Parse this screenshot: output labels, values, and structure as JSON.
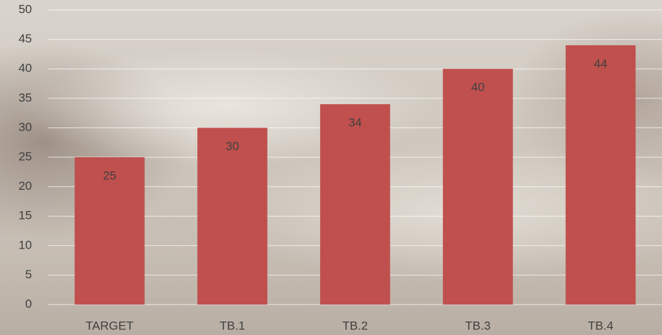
{
  "chart_data": {
    "type": "bar",
    "categories": [
      "TARGET",
      "TB.1",
      "TB.2",
      "TB.3",
      "TB.4"
    ],
    "values": [
      25,
      30,
      34,
      40,
      44
    ],
    "color": "#c0504d",
    "ylim": [
      0,
      50
    ],
    "yticks": [
      0,
      5,
      10,
      15,
      20,
      25,
      30,
      35,
      40,
      45,
      50
    ],
    "grid": true,
    "data_labels": true
  }
}
